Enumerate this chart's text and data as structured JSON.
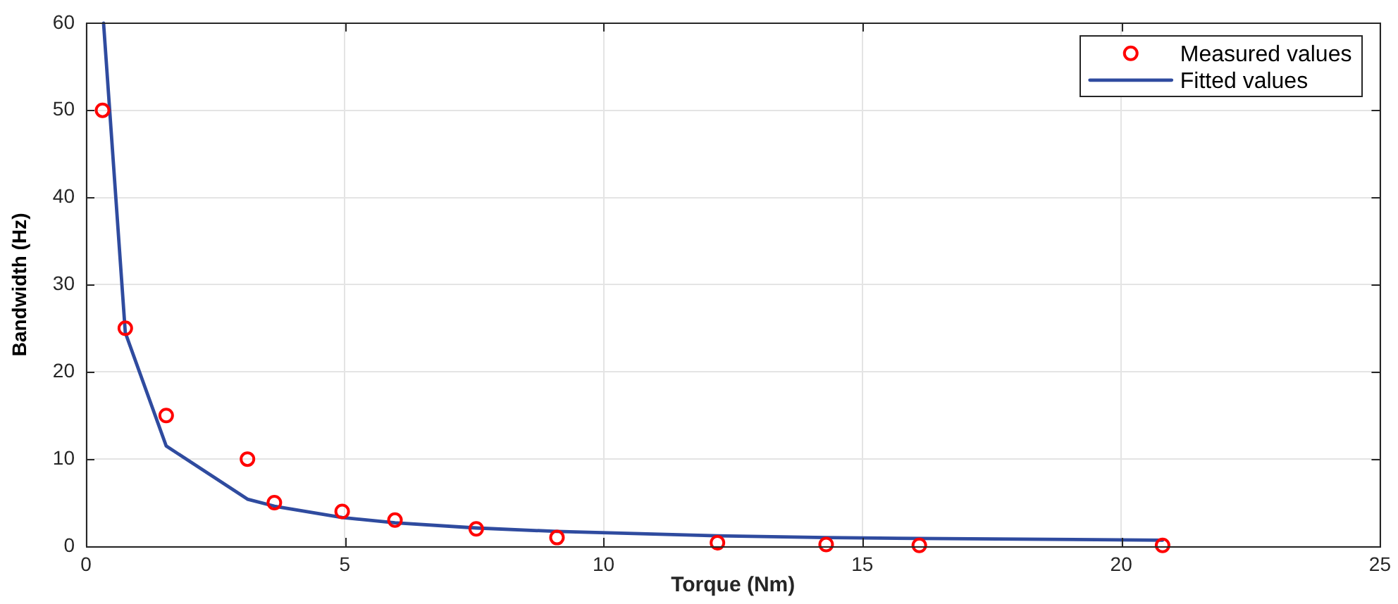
{
  "chart_data": {
    "type": "scatter",
    "xlabel": "Torque (Nm)",
    "ylabel": "Bandwidth (Hz)",
    "xlim": [
      0,
      25
    ],
    "xticks": [
      0,
      5,
      10,
      15,
      20,
      25
    ],
    "ylim": [
      0,
      60
    ],
    "yticks": [
      0,
      10,
      20,
      30,
      40,
      50,
      60
    ],
    "grid": true,
    "legend": "top right",
    "series": [
      {
        "name": "Measured values",
        "type": "scatter",
        "color": "#ff0000",
        "marker": "circle",
        "x": [
          0.32,
          0.76,
          1.55,
          3.12,
          3.64,
          4.95,
          5.97,
          7.54,
          9.1,
          12.2,
          14.3,
          16.1,
          20.8
        ],
        "values": [
          50,
          25,
          15,
          10,
          5,
          4,
          3,
          2,
          1,
          0.4,
          0.2,
          0.1,
          0.1
        ]
      },
      {
        "name": "Fitted values",
        "type": "line",
        "color": "#2f4b9f",
        "marker": "none",
        "line_style": "solid",
        "x": [
          0.34,
          0.76,
          1.55,
          3.12,
          3.64,
          4.95,
          5.97,
          7.54,
          9.1,
          12.2,
          14.3,
          16.1,
          20.8
        ],
        "values": [
          60,
          24.5,
          11.5,
          5.4,
          4.6,
          3.3,
          2.7,
          2.1,
          1.7,
          1.2,
          1.0,
          0.9,
          0.7
        ]
      }
    ]
  }
}
